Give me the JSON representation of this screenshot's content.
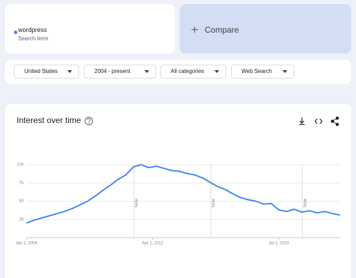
{
  "search": {
    "term": "wordpress",
    "caption": "Search term"
  },
  "compare": {
    "label": "Compare"
  },
  "filters": [
    "United States",
    "2004 - present",
    "All categories",
    "Web Search"
  ],
  "chart_data": {
    "type": "line",
    "title": "Interest over time",
    "x": [
      2004,
      2004.5,
      2005,
      2005.5,
      2006,
      2006.5,
      2007,
      2007.5,
      2008,
      2008.5,
      2009,
      2009.5,
      2010,
      2010.5,
      2011,
      2011.5,
      2012,
      2012.5,
      2013,
      2013.5,
      2014,
      2014.5,
      2015,
      2015.5,
      2016,
      2016.5,
      2017,
      2017.5,
      2018,
      2018.5,
      2019,
      2019.5,
      2020,
      2020.5,
      2021,
      2021.5,
      2022,
      2022.5,
      2023,
      2023.5,
      2024,
      2024.5
    ],
    "values": [
      20,
      24,
      27,
      30,
      33,
      36,
      40,
      45,
      50,
      57,
      65,
      72,
      80,
      86,
      97,
      100,
      96,
      98,
      95,
      92,
      91,
      88,
      86,
      82,
      76,
      70,
      66,
      60,
      55,
      52,
      50,
      46,
      47,
      38,
      36,
      39,
      35,
      37,
      34,
      36,
      33,
      31
    ],
    "color": "#4285f4",
    "xlim": [
      2004,
      2024.5
    ],
    "xticks": [
      {
        "value": 2004,
        "label": "Jan 1, 2004"
      },
      {
        "value": 2012.25,
        "label": "Apr 1, 2012"
      },
      {
        "value": 2020.5,
        "label": "Jul 1, 2020"
      }
    ],
    "ylim": [
      0,
      100
    ],
    "yticks": [
      25,
      50,
      75,
      100
    ],
    "grid": true,
    "notes": [
      {
        "x": 2011.03,
        "label": "Note"
      },
      {
        "x": 2016.06,
        "label": "Note"
      },
      {
        "x": 2022.04,
        "label": "Note"
      }
    ]
  }
}
